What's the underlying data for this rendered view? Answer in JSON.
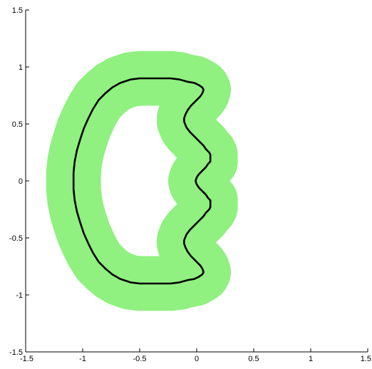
{
  "chart_data": {
    "type": "line",
    "title": "",
    "xlabel": "",
    "ylabel": "",
    "xlim": [
      -1.5,
      1.5
    ],
    "ylim": [
      -1.5,
      1.5
    ],
    "grid": false,
    "legend": "none",
    "x_ticks": [
      -1.5,
      -1,
      -0.5,
      0,
      0.5,
      1,
      1.5
    ],
    "x_tick_labels": [
      "-1.5",
      "-1",
      "-0.5",
      "0",
      "0.5",
      "1",
      "1.5"
    ],
    "y_ticks": [
      -1.5,
      -1,
      -0.5,
      0,
      0.5,
      1,
      1.5
    ],
    "y_tick_labels": [
      "-1.5",
      "-1",
      "-0.5",
      "0",
      "0.5",
      "1",
      "1.5"
    ],
    "curve": {
      "color": "#000000",
      "band_color": "#90F080",
      "band_halfwidth": 0.24,
      "points_upper": [
        [
          -0.01,
          0.0
        ],
        [
          0.0,
          0.03
        ],
        [
          0.02,
          0.06
        ],
        [
          0.05,
          0.09
        ],
        [
          0.08,
          0.12
        ],
        [
          0.1,
          0.15
        ],
        [
          0.12,
          0.17
        ],
        [
          0.12,
          0.2
        ],
        [
          0.12,
          0.23
        ],
        [
          0.11,
          0.25
        ],
        [
          0.08,
          0.28
        ],
        [
          0.06,
          0.31
        ],
        [
          0.02,
          0.35
        ],
        [
          -0.02,
          0.39
        ],
        [
          -0.06,
          0.43
        ],
        [
          -0.09,
          0.47
        ],
        [
          -0.11,
          0.52
        ],
        [
          -0.11,
          0.55
        ],
        [
          -0.1,
          0.58
        ],
        [
          -0.08,
          0.62
        ],
        [
          -0.05,
          0.66
        ],
        [
          -0.01,
          0.7
        ],
        [
          0.03,
          0.74
        ],
        [
          0.05,
          0.77
        ],
        [
          0.06,
          0.8
        ],
        [
          0.05,
          0.82
        ],
        [
          0.02,
          0.84
        ],
        [
          -0.02,
          0.86
        ],
        [
          -0.08,
          0.87
        ],
        [
          -0.15,
          0.89
        ],
        [
          -0.23,
          0.9
        ],
        [
          -0.31,
          0.9
        ],
        [
          -0.41,
          0.9
        ],
        [
          -0.5,
          0.9
        ],
        [
          -0.58,
          0.89
        ],
        [
          -0.67,
          0.86
        ],
        [
          -0.74,
          0.82
        ],
        [
          -0.8,
          0.77
        ],
        [
          -0.86,
          0.71
        ],
        [
          -0.91,
          0.63
        ],
        [
          -0.95,
          0.55
        ],
        [
          -0.99,
          0.46
        ],
        [
          -1.02,
          0.37
        ],
        [
          -1.05,
          0.27
        ],
        [
          -1.07,
          0.17
        ],
        [
          -1.08,
          0.07
        ],
        [
          -1.08,
          0.0
        ]
      ]
    }
  }
}
